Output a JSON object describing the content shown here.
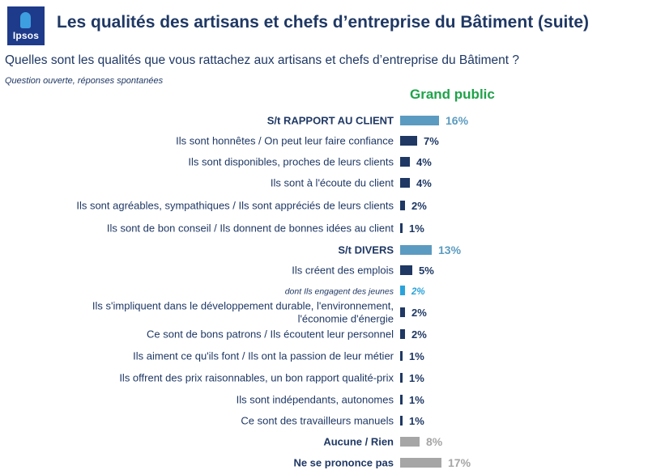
{
  "brand": {
    "logo_text": "Ipsos"
  },
  "title": "Les qualités des artisans et chefs d’entreprise du Bâtiment (suite)",
  "question": "Quelles sont les qualités que vous rattachez aux artisans et chefs d’entreprise du Bâtiment ?",
  "subtitle": "Question ouverte, réponses spontanées",
  "chart_data": {
    "type": "bar",
    "orientation": "horizontal",
    "series": [
      {
        "name": "Grand public",
        "values": [
          16,
          7,
          4,
          4,
          2,
          1,
          13,
          5,
          2,
          2,
          2,
          1,
          1,
          1,
          1,
          8,
          17
        ]
      }
    ],
    "categories": [
      {
        "lines": [
          "S/t RAPPORT AU CLIENT"
        ],
        "style": "subtotal"
      },
      {
        "lines": [
          "Ils sont honnêtes / On peut leur faire confiance"
        ],
        "style": "item"
      },
      {
        "lines": [
          "Ils sont disponibles, proches de leurs clients"
        ],
        "style": "item"
      },
      {
        "lines": [
          "Ils sont à l'écoute du client"
        ],
        "style": "item"
      },
      {
        "lines": [
          "Ils sont agréables, sympathiques / Ils sont appréciés de leurs clients"
        ],
        "style": "item"
      },
      {
        "lines": [
          "Ils sont de bon conseil / Ils donnent de bonnes idées au client"
        ],
        "style": "item"
      },
      {
        "lines": [
          "S/t DIVERS"
        ],
        "style": "subtotal"
      },
      {
        "lines": [
          "Ils créent des emplois"
        ],
        "style": "item"
      },
      {
        "lines": [
          "dont Ils engagent des jeunes"
        ],
        "style": "sub"
      },
      {
        "lines": [
          "Ils s'impliquent dans le développement durable, l'environnement,",
          "l'économie d'énergie"
        ],
        "style": "item"
      },
      {
        "lines": [
          "Ce sont de bons patrons / Ils écoutent leur personnel"
        ],
        "style": "item"
      },
      {
        "lines": [
          "Ils aiment ce qu'ils font / Ils ont la passion de leur métier"
        ],
        "style": "item"
      },
      {
        "lines": [
          "Ils offrent des prix raisonnables, un bon rapport qualité-prix"
        ],
        "style": "item"
      },
      {
        "lines": [
          "Ils sont indépendants, autonomes"
        ],
        "style": "item"
      },
      {
        "lines": [
          "Ce sont des travailleurs manuels"
        ],
        "style": "item"
      },
      {
        "lines": [
          "Aucune / Rien"
        ],
        "style": "other"
      },
      {
        "lines": [
          "Ne se prononce pas"
        ],
        "style": "other"
      }
    ],
    "value_labels": [
      "16%",
      "7%",
      "4%",
      "4%",
      "2%",
      "1%",
      "13%",
      "5%",
      "2%",
      "2%",
      "2%",
      "1%",
      "1%",
      "1%",
      "1%",
      "8%",
      "17%"
    ],
    "title": "Les qualités des artisans et chefs d’entreprise du Bâtiment (suite)",
    "xlabel": "",
    "ylabel": "",
    "xlim": [
      0,
      100
    ],
    "unit": "%",
    "legend": "top"
  },
  "colors": {
    "title": "#1f3864",
    "subtotal": "#5b9bc1",
    "item": "#1f3864",
    "sub": "#2aa3dc",
    "other": "#a6a6a6",
    "header": "#1ea34a",
    "brand_bg": "#1e3a8a",
    "brand_mark": "#3d9fe0"
  }
}
